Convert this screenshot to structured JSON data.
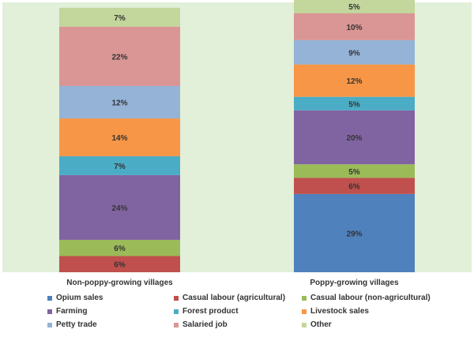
{
  "chart_data": {
    "type": "bar",
    "stacked": true,
    "percent": true,
    "title": "",
    "xlabel": "",
    "ylabel": "",
    "categories": [
      "Non-poppy-growing villages",
      "Poppy-growing villages"
    ],
    "series": [
      {
        "name": "Opium sales",
        "color": "#4f81bd",
        "values": [
          0,
          29
        ],
        "labels": [
          "",
          "29%"
        ]
      },
      {
        "name": "Casual labour (agricultural)",
        "color": "#c0504d",
        "values": [
          6,
          6
        ],
        "labels": [
          "6%",
          "6%"
        ]
      },
      {
        "name": "Casual labour (non-agricultural)",
        "color": "#9bbb59",
        "values": [
          6,
          5
        ],
        "labels": [
          "6%",
          "5%"
        ]
      },
      {
        "name": "Farming",
        "color": "#8064a2",
        "values": [
          24,
          20
        ],
        "labels": [
          "24%",
          "20%"
        ]
      },
      {
        "name": "Forest product",
        "color": "#4bacc6",
        "values": [
          7,
          5
        ],
        "labels": [
          "7%",
          "5%"
        ]
      },
      {
        "name": "Livestock sales",
        "color": "#f79646",
        "values": [
          14,
          12
        ],
        "labels": [
          "14%",
          "12%"
        ]
      },
      {
        "name": "Petty trade",
        "color": "#95b3d7",
        "values": [
          12,
          9
        ],
        "labels": [
          "12%",
          "9%"
        ]
      },
      {
        "name": "Salaried job",
        "color": "#d99694",
        "values": [
          22,
          10
        ],
        "labels": [
          "22%",
          "10%"
        ]
      },
      {
        "name": "Other",
        "color": "#c3d69b",
        "values": [
          7,
          5
        ],
        "labels": [
          "7%",
          "5%"
        ]
      }
    ],
    "ylim": [
      0,
      100
    ],
    "grid": false,
    "legend": "bottom",
    "plot_background": "#e2efd9"
  }
}
